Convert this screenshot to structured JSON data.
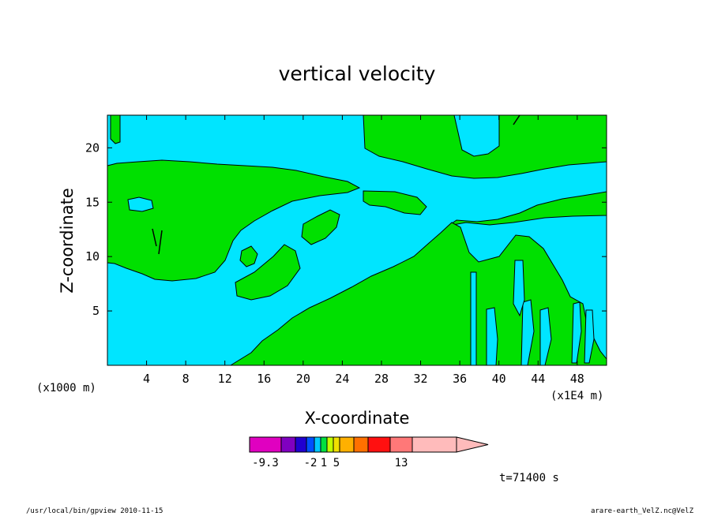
{
  "chart_data": {
    "type": "filled-contour",
    "title": "vertical velocity",
    "xlabel": "X-coordinate",
    "ylabel": "Z-coordinate",
    "x_unit_left": "(x1000 m)",
    "x_unit_right": "(x1E4 m)",
    "xlim": [
      0,
      51
    ],
    "ylim": [
      0,
      23
    ],
    "x_ticks": [
      4,
      8,
      12,
      16,
      20,
      24,
      28,
      32,
      36,
      40,
      44,
      48
    ],
    "y_ticks": [
      5,
      10,
      15,
      20
    ],
    "visible_fill_colors": {
      "background": "#00e5ff",
      "upward": "#00e000",
      "contour_line": "#000000"
    },
    "colorbar": {
      "colors": [
        "#e000c0",
        "#8000c0",
        "#2000d0",
        "#0050ff",
        "#00c8ff",
        "#00e040",
        "#c0ff00",
        "#f0e000",
        "#ffb000",
        "#ff7000",
        "#ff1010",
        "#ff7878",
        "#ffbbbb"
      ],
      "tick_labels": [
        "-9.3",
        "-2",
        "1",
        "5",
        "13"
      ],
      "tick_index": [
        0,
        3,
        5,
        7,
        11
      ]
    },
    "annotation": "t=71400 s"
  },
  "footer": {
    "left": "/usr/local/bin/gpview  2010-11-15",
    "right": "arare-earth_VelZ.nc@VelZ"
  }
}
